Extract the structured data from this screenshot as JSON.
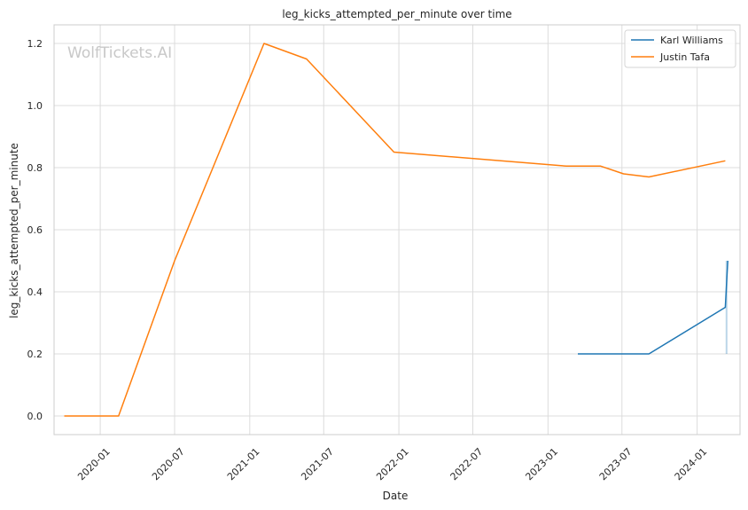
{
  "chart_data": {
    "type": "line",
    "title": "leg_kicks_attempted_per_minute over time",
    "xlabel": "Date",
    "ylabel": "leg_kicks_attempted_per_minute",
    "watermark": "WolfTickets.AI",
    "x_ticks": [
      "2020-01",
      "2020-07",
      "2021-01",
      "2021-07",
      "2022-01",
      "2022-07",
      "2023-01",
      "2023-07",
      "2024-01"
    ],
    "y_ticks": [
      "0.0",
      "0.2",
      "0.4",
      "0.6",
      "0.8",
      "1.0",
      "1.2"
    ],
    "xlim": [
      "2019-09-10",
      "2024-04-15"
    ],
    "ylim": [
      -0.06,
      1.26
    ],
    "grid": true,
    "legend_position": "top-right",
    "series": [
      {
        "name": "Karl Williams",
        "color": "#1f77b4",
        "points": [
          {
            "x": "2023-03-15",
            "y": 0.2
          },
          {
            "x": "2023-09-05",
            "y": 0.2
          },
          {
            "x": "2024-03-10",
            "y": 0.35
          },
          {
            "x": "2024-03-16",
            "y": 0.5
          }
        ],
        "band": {
          "x": "2024-03-13",
          "low": 0.2,
          "high": 0.5
        }
      },
      {
        "name": "Justin Tafa",
        "color": "#ff7f0e",
        "points": [
          {
            "x": "2019-10-05",
            "y": 0.0
          },
          {
            "x": "2020-02-15",
            "y": 0.0
          },
          {
            "x": "2020-07-01",
            "y": 0.5
          },
          {
            "x": "2021-02-05",
            "y": 1.2
          },
          {
            "x": "2021-05-20",
            "y": 1.15
          },
          {
            "x": "2021-12-20",
            "y": 0.85
          },
          {
            "x": "2023-02-15",
            "y": 0.805
          },
          {
            "x": "2023-05-10",
            "y": 0.805
          },
          {
            "x": "2023-07-05",
            "y": 0.78
          },
          {
            "x": "2023-09-05",
            "y": 0.77
          },
          {
            "x": "2024-03-10",
            "y": 0.822
          }
        ]
      }
    ]
  }
}
